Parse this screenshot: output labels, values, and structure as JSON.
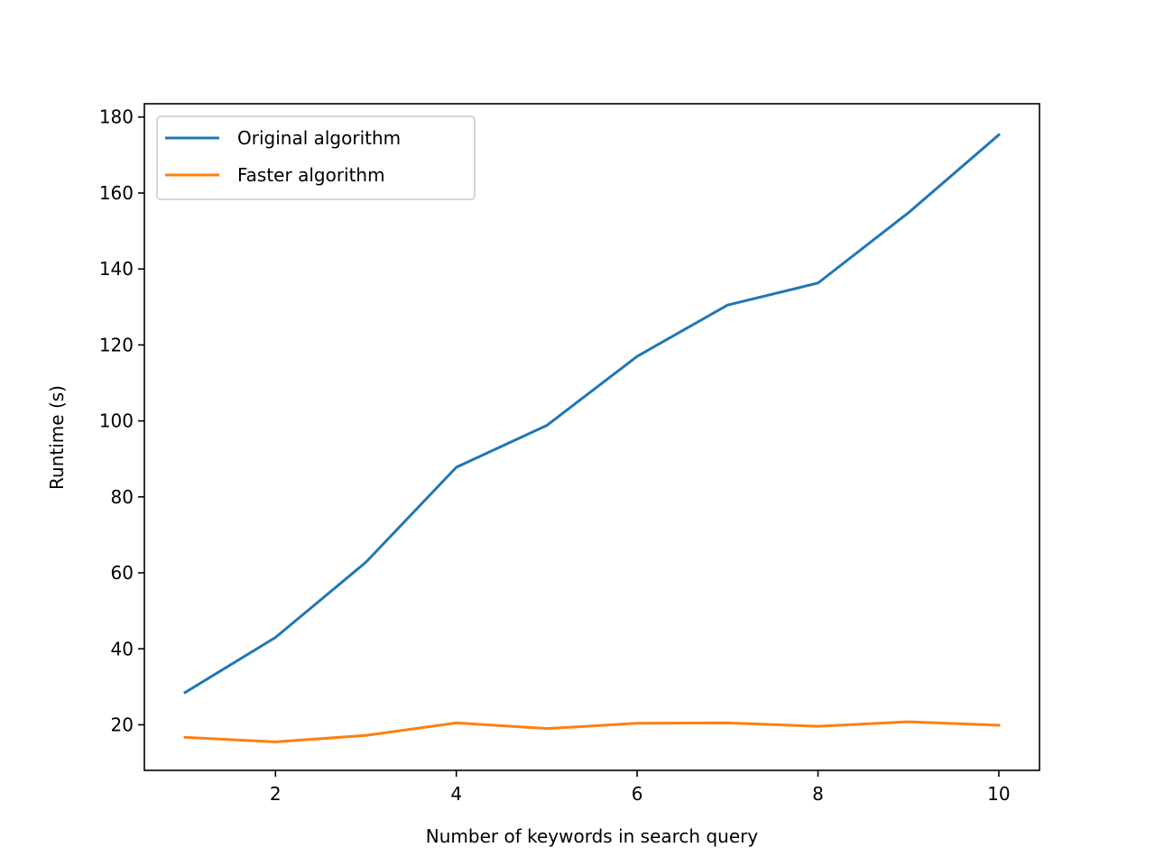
{
  "chart_data": {
    "type": "line",
    "title": "",
    "xlabel": "Number of keywords in search query",
    "ylabel": "Runtime (s)",
    "x": [
      1,
      2,
      3,
      4,
      5,
      6,
      7,
      8,
      9,
      10
    ],
    "xlim": [
      0.55,
      10.45
    ],
    "ylim": [
      8.0,
      183.5
    ],
    "xticks": [
      2,
      4,
      6,
      8,
      10
    ],
    "yticks": [
      20,
      40,
      60,
      80,
      100,
      120,
      140,
      160,
      180
    ],
    "grid": false,
    "legend_position": "top-left",
    "series": [
      {
        "name": "Original algorithm",
        "color": "#1f77b4",
        "values": [
          28.5,
          43.0,
          62.8,
          87.8,
          98.8,
          117.0,
          130.5,
          136.3,
          154.8,
          175.3
        ]
      },
      {
        "name": "Faster algorithm",
        "color": "#ff7f0e",
        "values": [
          16.7,
          15.5,
          17.2,
          20.5,
          19.0,
          20.4,
          20.5,
          19.6,
          20.8,
          19.9
        ]
      }
    ]
  }
}
